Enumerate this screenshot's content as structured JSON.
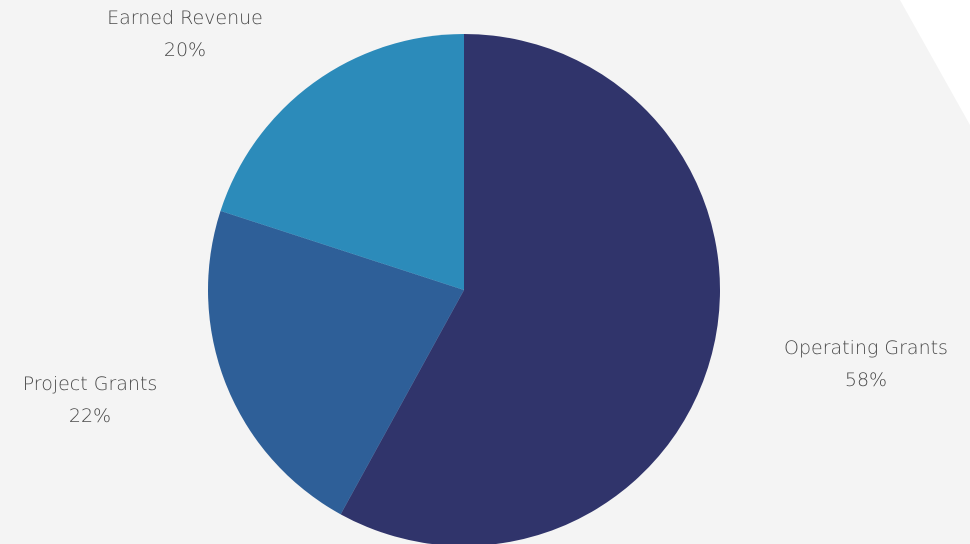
{
  "chart_data": {
    "type": "pie",
    "categories": [
      "Operating Grants",
      "Project Grants",
      "Earned Revenue"
    ],
    "values": [
      58,
      22,
      20
    ],
    "value_labels": [
      "58%",
      "22%",
      "20%"
    ],
    "colors": [
      "#30346b",
      "#2e5f98",
      "#2c8bba"
    ],
    "start_angle_deg": 0,
    "direction": "clockwise",
    "legend": "none"
  },
  "colors": {
    "background": "#f4f4f4",
    "corner_accent": "#ffffff",
    "label_text": "#4a4a4a"
  }
}
